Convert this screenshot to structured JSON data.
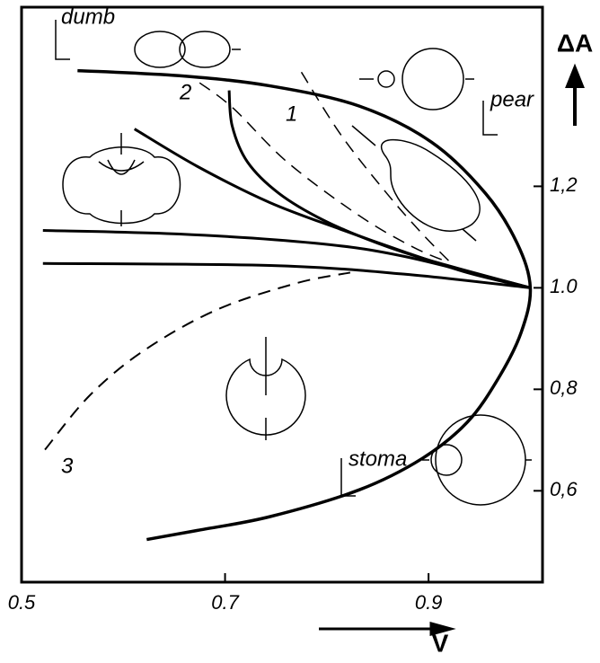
{
  "chart_data": {
    "type": "line",
    "x_label": "V",
    "y_label": "ΔA",
    "annotations": [
      "dumb",
      "pear",
      "stoma",
      "1",
      "2",
      "3"
    ],
    "xlim": [
      0.5,
      1.012
    ],
    "ylim": [
      0.42,
      1.553
    ],
    "xticks": [
      0.5,
      0.7,
      0.9
    ],
    "yticks": [
      {
        "value": 0.6,
        "label": "0,6"
      },
      {
        "value": 0.8,
        "label": "0,8"
      },
      {
        "value": 1.0,
        "label": "1.0"
      },
      {
        "value": 1.2,
        "label": "1,2"
      }
    ],
    "series": [
      {
        "color": "#000000",
        "dashed": false,
        "width": 3.5,
        "x": [
          0.555,
          0.655,
          0.744,
          0.832,
          0.903,
          0.956,
          0.987,
          1.0,
          0.991,
          0.969,
          0.938,
          0.894,
          0.832,
          0.744,
          0.673,
          0.623
        ],
        "values": [
          1.428,
          1.418,
          1.398,
          1.358,
          1.287,
          1.186,
          1.088,
          1.0,
          0.912,
          0.823,
          0.735,
          0.664,
          0.602,
          0.549,
          0.522,
          0.504
        ]
      },
      {
        "color": "#000000",
        "dashed": false,
        "width": 3,
        "x": [
          0.704,
          0.707,
          0.722,
          0.753,
          0.797,
          0.85,
          0.903,
          1.0
        ],
        "values": [
          1.389,
          1.319,
          1.248,
          1.186,
          1.133,
          1.088,
          1.053,
          1.0
        ]
      },
      {
        "color": "#000000",
        "dashed": false,
        "width": 3,
        "x": [
          0.611,
          0.673,
          0.744,
          0.814,
          0.876,
          0.938,
          1.0
        ],
        "values": [
          1.313,
          1.239,
          1.168,
          1.115,
          1.071,
          1.03,
          1.0
        ]
      },
      {
        "color": "#000000",
        "dashed": false,
        "width": 3,
        "x": [
          0.521,
          0.655,
          0.788,
          0.876,
          1.0
        ],
        "values": [
          1.113,
          1.106,
          1.088,
          1.062,
          1.0
        ]
      },
      {
        "color": "#000000",
        "dashed": false,
        "width": 3,
        "x": [
          0.521,
          0.744,
          0.876,
          1.0
        ],
        "values": [
          1.048,
          1.044,
          1.027,
          1.0
        ]
      },
      {
        "color": "#000000",
        "dashed": true,
        "width": 1.5,
        "x": [
          0.775,
          0.814,
          0.859,
          0.894,
          0.92
        ],
        "values": [
          1.425,
          1.301,
          1.186,
          1.106,
          1.053
        ]
      },
      {
        "color": "#000000",
        "dashed": true,
        "width": 1.5,
        "x": [
          0.675,
          0.708,
          0.761,
          0.832,
          0.885,
          0.92
        ],
        "values": [
          1.404,
          1.354,
          1.248,
          1.142,
          1.08,
          1.05
        ]
      },
      {
        "color": "#000000",
        "dashed": true,
        "width": 2,
        "x": [
          0.523,
          0.567,
          0.62,
          0.691,
          0.77,
          0.823
        ],
        "values": [
          0.681,
          0.788,
          0.876,
          0.956,
          1.009,
          1.03
        ]
      }
    ]
  }
}
